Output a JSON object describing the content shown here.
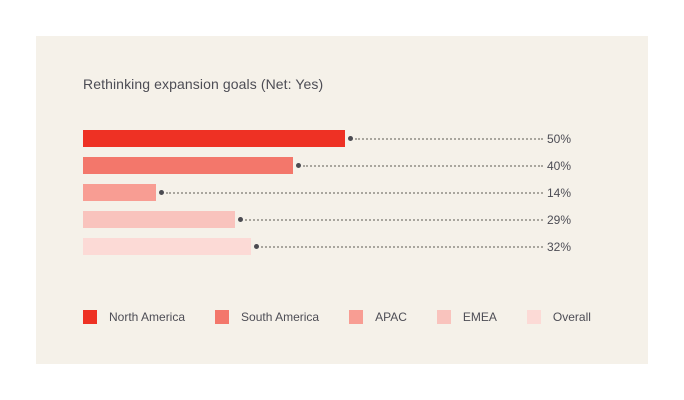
{
  "page": {
    "background": "#ffffff",
    "panel_background": "#f5f1e9",
    "text_color": "#4d4d55"
  },
  "chart_data": {
    "type": "bar",
    "orientation": "horizontal",
    "title": "Rethinking expansion goals (Net: Yes)",
    "categories": [
      "North America",
      "South America",
      "APAC",
      "EMEA",
      "Overall"
    ],
    "values": [
      50,
      40,
      14,
      29,
      32
    ],
    "value_labels": [
      "50%",
      "40%",
      "14%",
      "29%",
      "32%"
    ],
    "colors": [
      "#ee3124",
      "#f3776b",
      "#f89d93",
      "#f9c3bd",
      "#fcdad6"
    ],
    "xlim": [
      0,
      100
    ],
    "grid": false,
    "legend_position": "bottom",
    "leader_dot_color": "#4b4b51",
    "leader_line_color": "#a9a69e"
  }
}
